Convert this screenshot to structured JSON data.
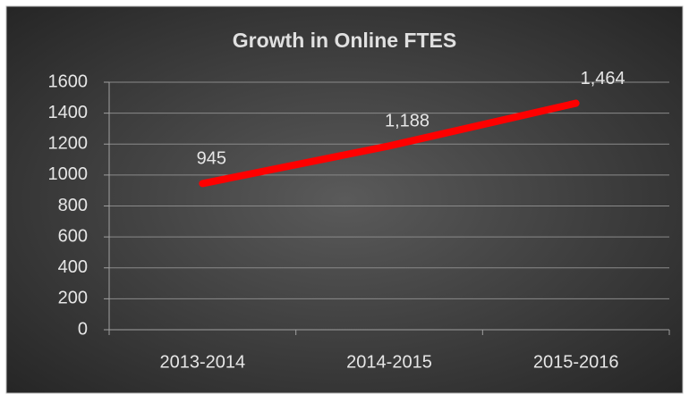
{
  "chart_data": {
    "type": "line",
    "title": "Growth in Online FTES",
    "categories": [
      "2013-2014",
      "2014-2015",
      "2015-2016"
    ],
    "values": [
      945,
      1188,
      1464
    ],
    "value_labels": [
      "945",
      "1,188",
      "1,464"
    ],
    "color": "#ff0000",
    "ylim": [
      0,
      1600
    ],
    "yticks": [
      0,
      200,
      400,
      600,
      800,
      1000,
      1200,
      1400,
      1600
    ],
    "grid": true
  }
}
